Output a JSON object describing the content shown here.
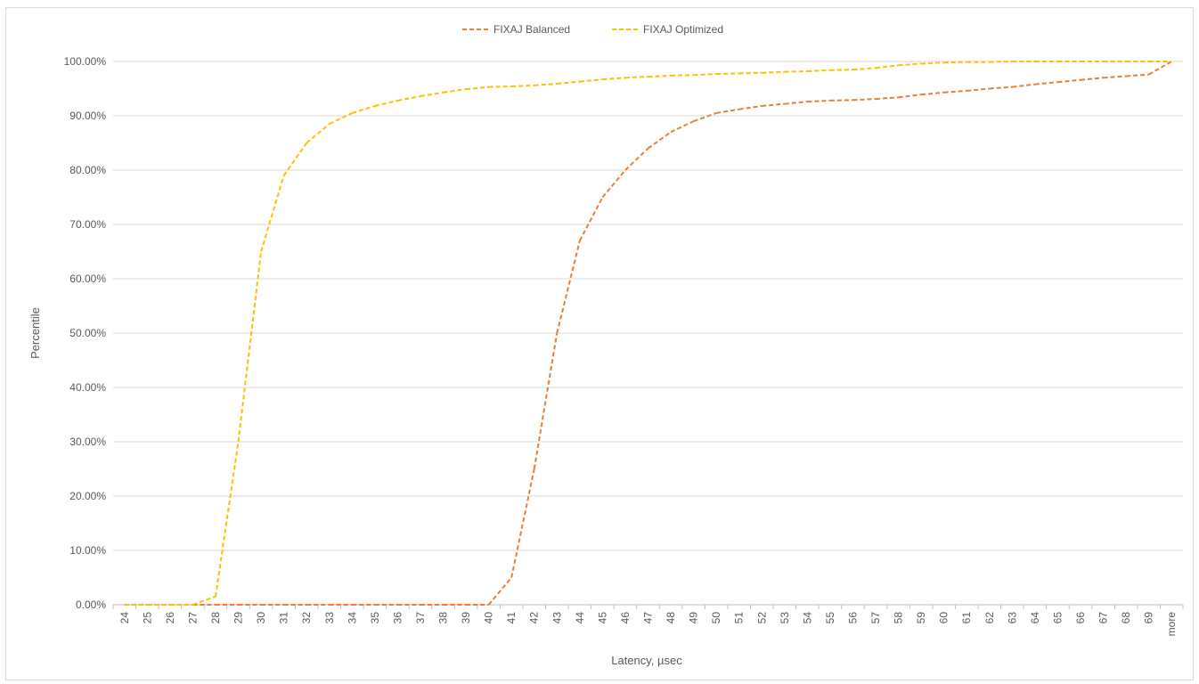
{
  "chart_data": {
    "type": "line",
    "title": "",
    "xlabel": "Latency, µsec",
    "ylabel": "Percentile",
    "ylim": [
      0,
      100
    ],
    "y_ticks": [
      "0.00%",
      "10.00%",
      "20.00%",
      "30.00%",
      "40.00%",
      "50.00%",
      "60.00%",
      "70.00%",
      "80.00%",
      "90.00%",
      "100.00%"
    ],
    "grid": true,
    "legend_position": "top-center",
    "categories": [
      "24",
      "25",
      "26",
      "27",
      "28",
      "29",
      "30",
      "31",
      "32",
      "33",
      "34",
      "35",
      "36",
      "37",
      "38",
      "39",
      "40",
      "41",
      "42",
      "43",
      "44",
      "45",
      "46",
      "47",
      "48",
      "49",
      "50",
      "51",
      "52",
      "53",
      "54",
      "55",
      "56",
      "57",
      "58",
      "59",
      "60",
      "61",
      "62",
      "63",
      "64",
      "65",
      "66",
      "67",
      "68",
      "69",
      "more"
    ],
    "series": [
      {
        "name": "FIXAJ Balanced",
        "color": "#ED7D31",
        "style": "dashed",
        "values": [
          0,
          0,
          0,
          0,
          0,
          0,
          0,
          0,
          0,
          0,
          0,
          0,
          0,
          0,
          0,
          0,
          0,
          5,
          25,
          50,
          67,
          75,
          80,
          84,
          87,
          89,
          90.5,
          91.2,
          91.8,
          92.2,
          92.6,
          92.8,
          92.9,
          93.1,
          93.4,
          93.9,
          94.3,
          94.6,
          95,
          95.3,
          95.8,
          96.2,
          96.6,
          97,
          97.3,
          97.6,
          100
        ]
      },
      {
        "name": "FIXAJ Optimized",
        "color": "#FFC000",
        "style": "dashed",
        "values": [
          0,
          0,
          0,
          0,
          1.5,
          30,
          65,
          79,
          85,
          88.5,
          90.5,
          91.8,
          92.8,
          93.6,
          94.3,
          94.9,
          95.3,
          95.4,
          95.6,
          95.9,
          96.3,
          96.7,
          97,
          97.2,
          97.4,
          97.5,
          97.7,
          97.8,
          97.9,
          98.1,
          98.2,
          98.4,
          98.5,
          98.8,
          99.3,
          99.6,
          99.8,
          99.9,
          99.9,
          100,
          100,
          100,
          100,
          100,
          100,
          100,
          100
        ]
      }
    ]
  }
}
